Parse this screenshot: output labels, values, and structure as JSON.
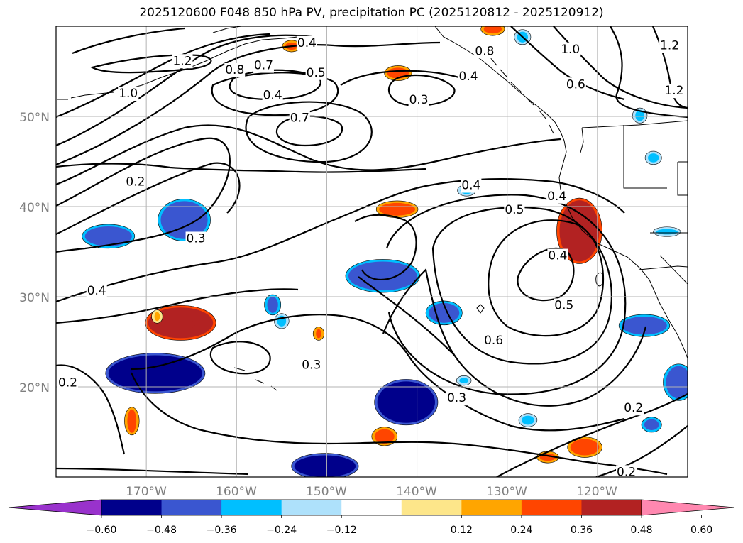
{
  "title": "2025120600 F048 850 hPa PV, precipitation PC (2025120812 - 2025120912)",
  "map": {
    "lon_range": [
      -180,
      -110
    ],
    "lat_range": [
      10,
      60
    ],
    "lon_ticks": [
      "170°W",
      "160°W",
      "150°W",
      "140°W",
      "130°W",
      "120°W"
    ],
    "lat_ticks": [
      "20°N",
      "30°N",
      "40°N",
      "50°N"
    ],
    "grid": true
  },
  "colorbar": {
    "ticks": [
      "−0.60",
      "−0.48",
      "−0.36",
      "−0.24",
      "−0.12",
      "0.12",
      "0.24",
      "0.36",
      "0.48",
      "0.60"
    ],
    "colors": [
      "#9932cc",
      "#00008b",
      "#3a56d0",
      "#00bfff",
      "#aee1fb",
      "#ffffff",
      "#fde68a",
      "#ffa500",
      "#ff4500",
      "#b22222",
      "#ff88b0"
    ]
  },
  "contour_labels": [
    {
      "text": "1.2",
      "lon": -166,
      "lat": 56.2
    },
    {
      "text": "0.8",
      "lon": -160.2,
      "lat": 55.2
    },
    {
      "text": "0.7",
      "lon": -157,
      "lat": 55.7
    },
    {
      "text": "0.5",
      "lon": -151.2,
      "lat": 54.9
    },
    {
      "text": "0.4",
      "lon": -152.2,
      "lat": 58.2
    },
    {
      "text": "0.4",
      "lon": -134.3,
      "lat": 54.5
    },
    {
      "text": "0.3",
      "lon": -139.8,
      "lat": 51.9
    },
    {
      "text": "0.4",
      "lon": -156,
      "lat": 52.4
    },
    {
      "text": "1.0",
      "lon": -172,
      "lat": 52.6
    },
    {
      "text": "0.7",
      "lon": -153,
      "lat": 49.9
    },
    {
      "text": "0.8",
      "lon": -132.5,
      "lat": 57.3
    },
    {
      "text": "1.0",
      "lon": -123,
      "lat": 57.5
    },
    {
      "text": "0.6",
      "lon": -122.4,
      "lat": 53.6
    },
    {
      "text": "1.2",
      "lon": -112,
      "lat": 57.9
    },
    {
      "text": "1.2",
      "lon": -111.5,
      "lat": 52.9
    },
    {
      "text": "0.2",
      "lon": -171.2,
      "lat": 42.8
    },
    {
      "text": "0.4",
      "lon": -134,
      "lat": 42.4
    },
    {
      "text": "0.4",
      "lon": -124.5,
      "lat": 41.2
    },
    {
      "text": "0.5",
      "lon": -129.2,
      "lat": 39.7
    },
    {
      "text": "0.3",
      "lon": -164.5,
      "lat": 36.5
    },
    {
      "text": "0.4",
      "lon": -124.4,
      "lat": 34.6
    },
    {
      "text": "0.4",
      "lon": -175.5,
      "lat": 30.7
    },
    {
      "text": "0.5",
      "lon": -123.7,
      "lat": 29.1
    },
    {
      "text": "0.6",
      "lon": -131.5,
      "lat": 25.2
    },
    {
      "text": "0.3",
      "lon": -151.7,
      "lat": 22.5
    },
    {
      "text": "0.2",
      "lon": -178.7,
      "lat": 20.5
    },
    {
      "text": "0.3",
      "lon": -135.6,
      "lat": 18.8
    },
    {
      "text": "0.2",
      "lon": -116,
      "lat": 17.7
    },
    {
      "text": "0.2",
      "lon": -116.8,
      "lat": 10.6
    }
  ],
  "shaded_regions": [
    {
      "lon": -165.8,
      "lat": 38.5,
      "rx": 2.6,
      "ry": 2.1,
      "value": -0.36
    },
    {
      "lon": -174.2,
      "lat": 36.7,
      "rx": 2.6,
      "ry": 1.1,
      "value": -0.36
    },
    {
      "lon": -143.8,
      "lat": 32.3,
      "rx": 3.8,
      "ry": 1.6,
      "value": -0.36
    },
    {
      "lon": -169,
      "lat": 21.5,
      "rx": 5.2,
      "ry": 2.0,
      "value": -0.48
    },
    {
      "lon": -141.2,
      "lat": 18.3,
      "rx": 3.2,
      "ry": 2.3,
      "value": -0.48
    },
    {
      "lon": -150.2,
      "lat": 11.2,
      "rx": 3.4,
      "ry": 1.2,
      "value": -0.48
    },
    {
      "lon": -137,
      "lat": 28.2,
      "rx": 1.7,
      "ry": 1.1,
      "value": -0.36
    },
    {
      "lon": -114.8,
      "lat": 26.8,
      "rx": 2.5,
      "ry": 1.0,
      "value": -0.36
    },
    {
      "lon": -111,
      "lat": 20.5,
      "rx": 1.4,
      "ry": 1.8,
      "value": -0.36
    },
    {
      "lon": -156,
      "lat": 29.1,
      "rx": 0.6,
      "ry": 0.9,
      "value": -0.36
    },
    {
      "lon": -155,
      "lat": 27.3,
      "rx": 0.5,
      "ry": 0.6,
      "value": -0.24
    },
    {
      "lon": -114,
      "lat": 15.8,
      "rx": 0.8,
      "ry": 0.6,
      "value": -0.36
    },
    {
      "lon": -128.3,
      "lat": 58.8,
      "rx": 0.6,
      "ry": 0.6,
      "value": -0.24
    },
    {
      "lon": -115.3,
      "lat": 50.1,
      "rx": 0.5,
      "ry": 0.6,
      "value": -0.24
    },
    {
      "lon": -113.8,
      "lat": 45.4,
      "rx": 0.6,
      "ry": 0.5,
      "value": -0.24
    },
    {
      "lon": -134.5,
      "lat": 41.8,
      "rx": 0.7,
      "ry": 0.4,
      "value": -0.24
    },
    {
      "lon": -112.3,
      "lat": 37.2,
      "rx": 1.2,
      "ry": 0.3,
      "value": -0.24
    },
    {
      "lon": -127.7,
      "lat": 16.3,
      "rx": 0.7,
      "ry": 0.5,
      "value": -0.24
    },
    {
      "lon": -134.8,
      "lat": 20.7,
      "rx": 0.5,
      "ry": 0.3,
      "value": -0.24
    },
    {
      "lon": -122,
      "lat": 37.3,
      "rx": 2.2,
      "ry": 3.4,
      "value": 0.48
    },
    {
      "lon": -166.2,
      "lat": 27.1,
      "rx": 3.6,
      "ry": 1.7,
      "value": 0.48
    },
    {
      "lon": -142.2,
      "lat": 39.7,
      "rx": 2.0,
      "ry": 0.7,
      "value": 0.36
    },
    {
      "lon": -121.4,
      "lat": 13.3,
      "rx": 1.6,
      "ry": 0.9,
      "value": 0.36
    },
    {
      "lon": -143.6,
      "lat": 14.5,
      "rx": 1.1,
      "ry": 0.8,
      "value": 0.36
    },
    {
      "lon": -142.1,
      "lat": 54.8,
      "rx": 1.2,
      "ry": 0.6,
      "value": 0.36
    },
    {
      "lon": -131.6,
      "lat": 59.7,
      "rx": 1.0,
      "ry": 0.5,
      "value": 0.36
    },
    {
      "lon": -171.6,
      "lat": 16.2,
      "rx": 0.5,
      "ry": 1.3,
      "value": 0.36
    },
    {
      "lon": -125.5,
      "lat": 12.2,
      "rx": 0.9,
      "ry": 0.4,
      "value": 0.36
    },
    {
      "lon": -168.8,
      "lat": 27.8,
      "rx": 0.3,
      "ry": 0.5,
      "value": 0.24
    },
    {
      "lon": -150.9,
      "lat": 25.9,
      "rx": 0.3,
      "ry": 0.5,
      "value": 0.36
    },
    {
      "lon": -153.9,
      "lat": 57.8,
      "rx": 0.7,
      "ry": 0.4,
      "value": 0.36
    }
  ]
}
